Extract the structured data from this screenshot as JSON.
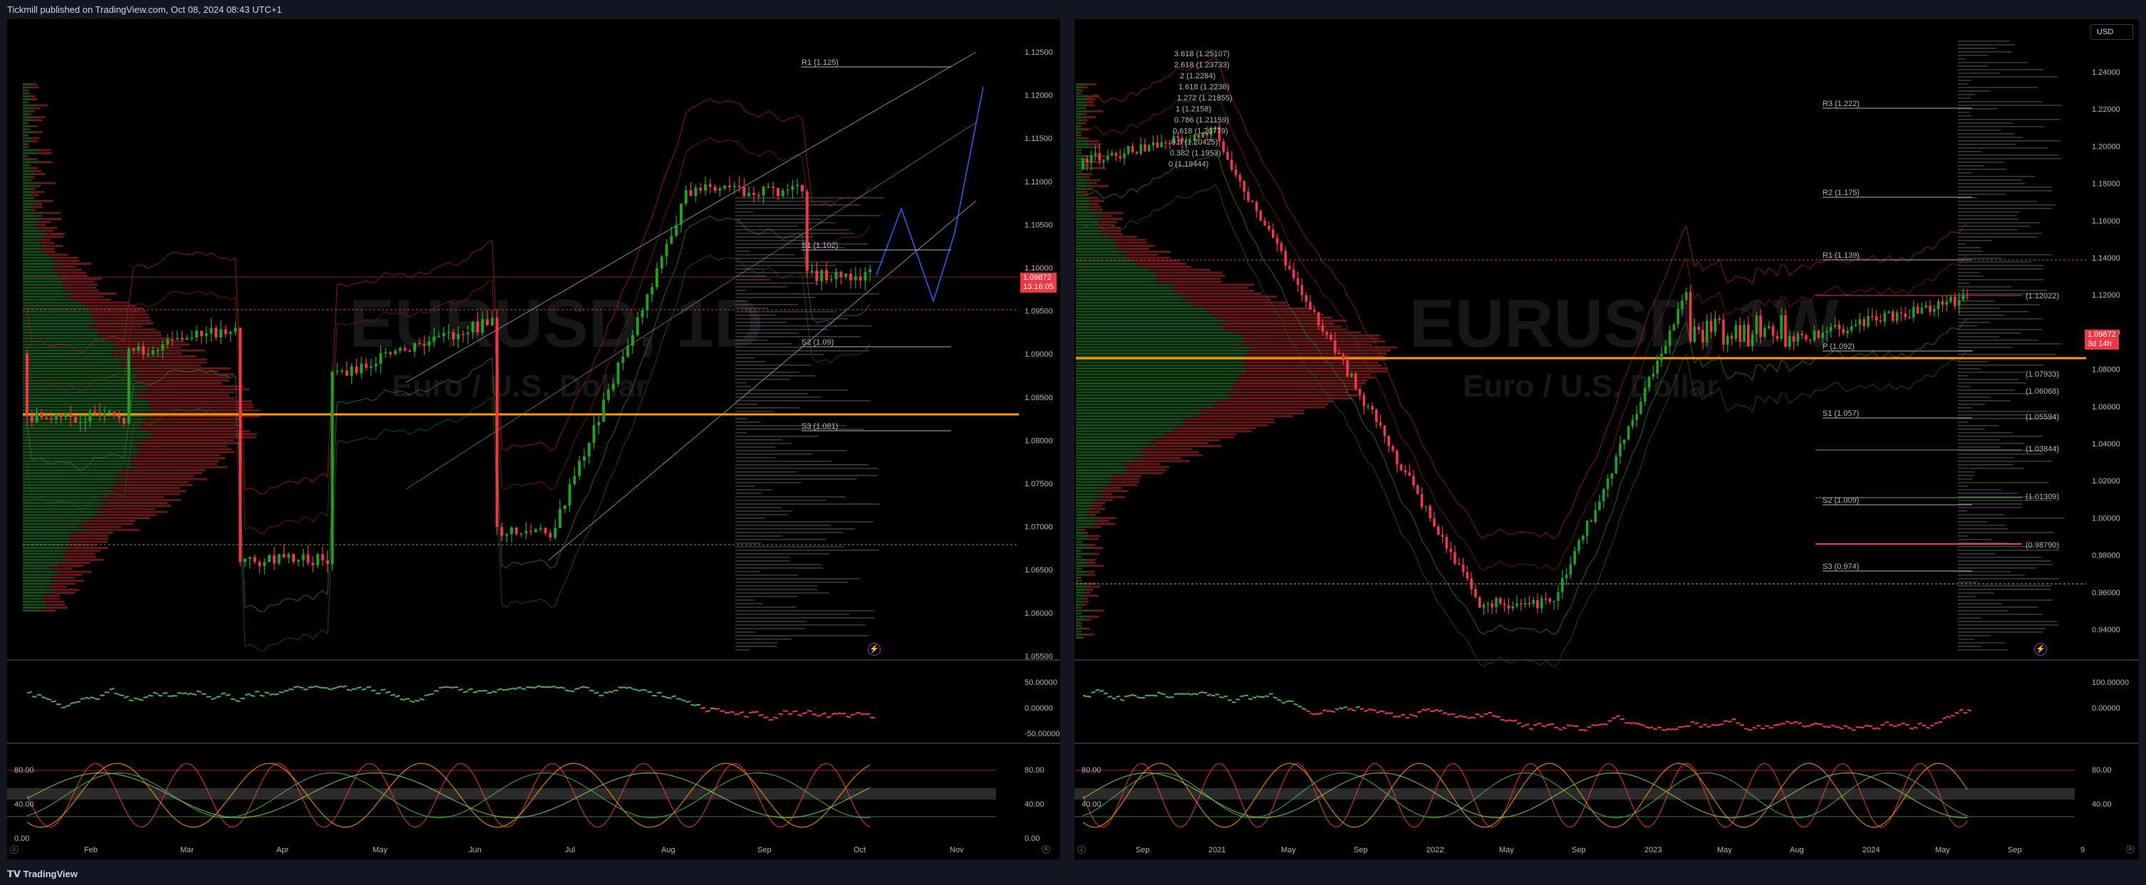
{
  "header": {
    "published": "Tickmill published on TradingView.com, Oct 08, 2024 08:43 UTC+1"
  },
  "footer": {
    "brand": "TradingView"
  },
  "colors": {
    "background": "#000000",
    "bull": "#089981",
    "bull_bright": "#1fa021",
    "bear": "#f23645",
    "poc": "#ff9800",
    "fib": "#2962ff"
  },
  "left_chart": {
    "symbol_watermark": "EURUSD, 1D",
    "desc_watermark": "Euro / U.S. Dollar",
    "price_tag": "1.09872",
    "countdown": "13:16:05",
    "price_axis": [
      "1.12500",
      "1.12000",
      "1.11500",
      "1.11000",
      "1.10500",
      "1.10000",
      "1.09500",
      "1.09000",
      "1.08500",
      "1.08000",
      "1.07500",
      "1.07000",
      "1.06500",
      "1.06000",
      "1.05500"
    ],
    "pivots": [
      {
        "label": "R1 (1.125)"
      },
      {
        "label": "S1 (1.102)"
      },
      {
        "label": "S2 (1.09)"
      },
      {
        "label": "S3 (1.081)"
      }
    ],
    "time_axis": [
      "Feb",
      "Mar",
      "Apr",
      "May",
      "Jun",
      "Jul",
      "Aug",
      "Sep",
      "Oct",
      "Nov"
    ],
    "osc1_axis": [
      "50.00000",
      "0.00000",
      "-50.00000"
    ],
    "osc2_axis": [
      "80.00",
      "40.00",
      "0.00"
    ],
    "osc2_axis_left": [
      "80.00",
      "40.00",
      "0.00"
    ]
  },
  "right_chart": {
    "symbol_watermark": "EURUSD, 1W",
    "desc_watermark": "Euro / U.S. Dollar",
    "price_tag": "1.09872",
    "countdown": "3d 14h",
    "currency_button": "USD",
    "price_axis": [
      "1.24000",
      "1.22000",
      "1.20000",
      "1.18000",
      "1.16000",
      "1.14000",
      "1.12000",
      "1.10000",
      "1.08000",
      "1.06000",
      "1.04000",
      "1.02000",
      "1.00000",
      "0.98000",
      "0.96000",
      "0.94000"
    ],
    "pivots": [
      {
        "label": "R3 (1.222)"
      },
      {
        "label": "R2 (1.175)"
      },
      {
        "label": "R1 (1.139)"
      },
      {
        "label": "P (1.092)"
      },
      {
        "label": "S1 (1.057)"
      },
      {
        "label": "S2 (1.009)"
      },
      {
        "label": "S3 (0.974)"
      }
    ],
    "fib_labels": [
      "3.618 (1.25107)",
      "2.618 (1.23733)",
      "2 (1.2284)",
      "1.618 (1.2236)",
      "1.272 (1.21855)",
      "1 (1.2158)",
      "0.786 (1.21159)",
      "0.618 (1.20779)",
      "0.5 (1.20425)",
      "0.382 (1.1953)",
      "0 (1.19444)"
    ],
    "level_labels": [
      "(1.12022)",
      "(1.07933)",
      "(1.06068)",
      "(1.05594)",
      "(1.03844)",
      "(1.01309)",
      "(0.98790)"
    ],
    "time_axis": [
      "Sep",
      "2021",
      "May",
      "Sep",
      "2022",
      "May",
      "Sep",
      "2023",
      "May",
      "Aug",
      "2024",
      "May",
      "Sep",
      "9"
    ],
    "osc1_axis": [
      "100.00000",
      "0.00000"
    ],
    "osc2_axis": [
      "80.00",
      "40.00"
    ],
    "osc2_axis_left": [
      "80.00",
      "40.00"
    ]
  }
}
